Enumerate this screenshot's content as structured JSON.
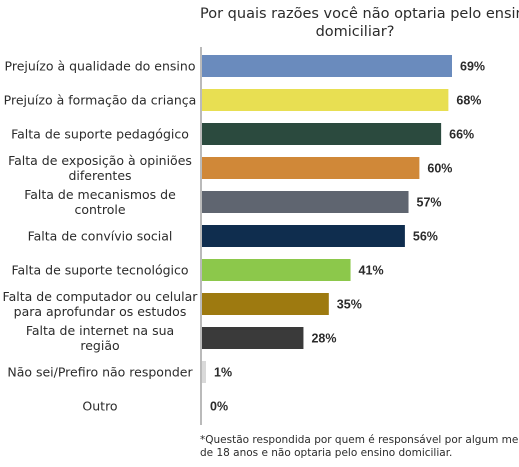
{
  "chart_data": {
    "type": "bar",
    "orientation": "horizontal",
    "title_lines": [
      "Por quais razões você não optaria pelo ensino",
      "domiciliar?"
    ],
    "categories": [
      [
        "Prejuízo à qualidade do ensino"
      ],
      [
        "Prejuízo à formação da criança"
      ],
      [
        "Falta de suporte pedagógico"
      ],
      [
        "Falta de exposição à opiniões",
        "diferentes"
      ],
      [
        "Falta de mecanismos de",
        "controle"
      ],
      [
        "Falta de convívio social"
      ],
      [
        "Falta de suporte tecnológico"
      ],
      [
        "Falta de computador ou celular",
        "para aprofundar os estudos"
      ],
      [
        "Falta de internet na sua",
        "região"
      ],
      [
        "Não sei/Prefiro não responder"
      ],
      [
        "Outro"
      ]
    ],
    "values": [
      69,
      68,
      66,
      60,
      57,
      56,
      41,
      35,
      28,
      1,
      0
    ],
    "value_labels": [
      "69%",
      "68%",
      "66%",
      "60%",
      "57%",
      "56%",
      "41%",
      "35%",
      "28%",
      "1%",
      "0%"
    ],
    "colors": [
      "#6a8bbd",
      "#e8df52",
      "#2b4a3e",
      "#d08838",
      "#5f6570",
      "#0f2d4e",
      "#8cc84b",
      "#9e7a10",
      "#3a3a3a",
      "#d9d9d9",
      "#cfcfcf"
    ],
    "xlim": [
      0,
      69
    ],
    "grid": false,
    "legend": "none",
    "footnote_lines": [
      "*Questão respondida por quem é responsável por algum menor",
      "de 18 anos e não optaria pelo ensino domiciliar."
    ]
  }
}
